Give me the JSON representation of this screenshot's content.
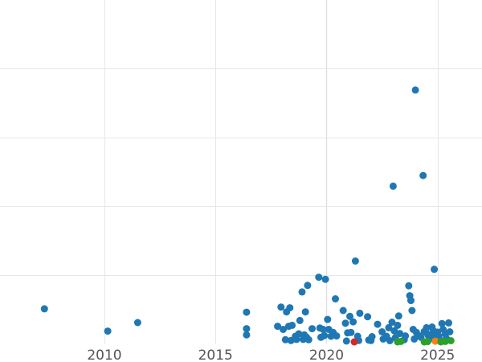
{
  "chart_data": {
    "type": "scatter",
    "title": "",
    "xlabel": "",
    "ylabel": "",
    "xlim": [
      2005.3,
      2027.0
    ],
    "ylim": [
      0,
      100
    ],
    "x_ticks": [
      2010,
      2015,
      2020,
      2025
    ],
    "x_tick_labels": [
      "2010",
      "2015",
      "2020",
      "2025"
    ],
    "y_gridlines": [
      20,
      40,
      60,
      80
    ],
    "grid": true,
    "legend": "none",
    "colors": {
      "blue": "#1f77b4",
      "orange": "#ff7f0e",
      "green": "#2ca02c",
      "red": "#d62728",
      "grid": "#e6e6e6",
      "tick_text": "#555555"
    },
    "series": [
      {
        "color_key": "blue",
        "points": [
          [
            2007.3,
            10.1
          ],
          [
            2010.15,
            3.6
          ],
          [
            2011.5,
            6.1
          ],
          [
            2016.4,
            9.1
          ],
          [
            2016.4,
            4.3
          ],
          [
            2016.4,
            2.5
          ],
          [
            2017.8,
            5.0
          ],
          [
            2017.95,
            10.6
          ],
          [
            2018.05,
            4.1
          ],
          [
            2018.15,
            1.1
          ],
          [
            2018.2,
            9.2
          ],
          [
            2018.3,
            5.0
          ],
          [
            2018.35,
            10.4
          ],
          [
            2018.4,
            0.8
          ],
          [
            2018.45,
            5.3
          ],
          [
            2018.6,
            2.1
          ],
          [
            2018.65,
            1.2
          ],
          [
            2018.75,
            2.8
          ],
          [
            2018.8,
            6.7
          ],
          [
            2018.9,
            15.0
          ],
          [
            2018.95,
            1.2
          ],
          [
            2019.0,
            2.5
          ],
          [
            2019.05,
            9.2
          ],
          [
            2019.1,
            1.8
          ],
          [
            2019.15,
            16.9
          ],
          [
            2019.2,
            1.1
          ],
          [
            2019.35,
            4.3
          ],
          [
            2019.65,
            19.3
          ],
          [
            2019.7,
            4.5
          ],
          [
            2019.75,
            1.8
          ],
          [
            2019.85,
            4.1
          ],
          [
            2019.9,
            2.3
          ],
          [
            2019.95,
            18.7
          ],
          [
            2020.05,
            7.0
          ],
          [
            2020.1,
            4.1
          ],
          [
            2020.2,
            2.1
          ],
          [
            2020.3,
            3.2
          ],
          [
            2020.4,
            13.0
          ],
          [
            2020.45,
            2.2
          ],
          [
            2020.75,
            9.6
          ],
          [
            2020.85,
            5.9
          ],
          [
            2020.9,
            0.5
          ],
          [
            2020.95,
            3.1
          ],
          [
            2021.05,
            7.9
          ],
          [
            2021.1,
            3.2
          ],
          [
            2021.2,
            6.3
          ],
          [
            2021.3,
            24.0
          ],
          [
            2021.4,
            2.1
          ],
          [
            2021.45,
            0.8
          ],
          [
            2021.5,
            8.8
          ],
          [
            2021.85,
            7.8
          ],
          [
            2021.9,
            1.0
          ],
          [
            2022.0,
            0.8
          ],
          [
            2022.05,
            2.0
          ],
          [
            2022.3,
            5.6
          ],
          [
            2022.5,
            3.4
          ],
          [
            2022.55,
            1.3
          ],
          [
            2022.7,
            2.1
          ],
          [
            2022.8,
            4.6
          ],
          [
            2022.85,
            0.7
          ],
          [
            2022.95,
            6.2
          ],
          [
            2023.05,
            3.7
          ],
          [
            2023.1,
            1.7
          ],
          [
            2023.2,
            5.3
          ],
          [
            2023.25,
            8.0
          ],
          [
            2023.3,
            2.9
          ],
          [
            2023.5,
            1.1
          ],
          [
            2023.55,
            2.2
          ],
          [
            2023.7,
            16.8
          ],
          [
            2023.75,
            13.9
          ],
          [
            2023.8,
            12.5
          ],
          [
            2023.85,
            9.6
          ],
          [
            2023.9,
            4.1
          ],
          [
            2023.95,
            1.3
          ],
          [
            2024.05,
            3.2
          ],
          [
            2024.15,
            2.3
          ],
          [
            2024.25,
            1.8
          ],
          [
            2024.4,
            3.5
          ],
          [
            2024.5,
            4.6
          ],
          [
            2024.55,
            2.7
          ],
          [
            2024.6,
            2.1
          ],
          [
            2024.65,
            1.3
          ],
          [
            2024.75,
            4.8
          ],
          [
            2024.8,
            3.8
          ],
          [
            2024.85,
            2.9
          ],
          [
            2024.9,
            1.7
          ],
          [
            2025.0,
            3.3
          ],
          [
            2025.05,
            2.2
          ],
          [
            2025.1,
            1.1
          ],
          [
            2025.2,
            5.8
          ],
          [
            2025.25,
            4.1
          ],
          [
            2025.35,
            2.7
          ],
          [
            2025.4,
            1.4
          ],
          [
            2025.5,
            6.0
          ],
          [
            2025.55,
            3.4
          ],
          [
            2023.0,
            45.8
          ],
          [
            2024.0,
            73.8
          ],
          [
            2024.35,
            48.9
          ],
          [
            2024.85,
            21.6
          ]
        ]
      },
      {
        "color_key": "orange",
        "points": [
          [
            2024.9,
            0.4
          ]
        ]
      },
      {
        "color_key": "green",
        "points": [
          [
            2023.2,
            0.0
          ],
          [
            2023.35,
            0.3
          ],
          [
            2024.4,
            0.0
          ],
          [
            2024.55,
            0.2
          ],
          [
            2025.15,
            0.0
          ],
          [
            2025.35,
            0.3
          ],
          [
            2025.6,
            0.7
          ]
        ]
      },
      {
        "color_key": "red",
        "points": [
          [
            2021.25,
            0.0
          ]
        ]
      }
    ]
  }
}
